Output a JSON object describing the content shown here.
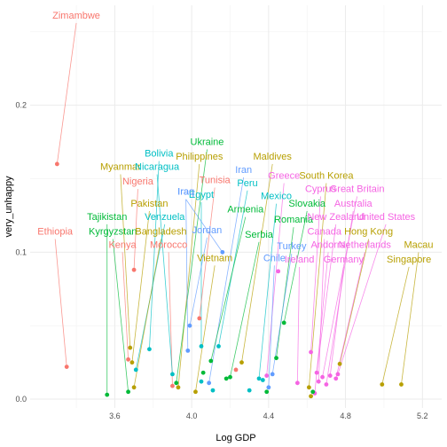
{
  "chart_data": {
    "type": "scatter",
    "xlabel": "Log GDP",
    "ylabel": "very_unhappy",
    "xlim": [
      3.16,
      5.3
    ],
    "ylim": [
      -0.006,
      0.268
    ],
    "x_ticks": [
      "3.6",
      "4.0",
      "4.4",
      "4.8",
      "5.2"
    ],
    "x_tick_values": [
      3.6,
      4.0,
      4.4,
      4.8,
      5.2
    ],
    "y_ticks": [
      "0.0",
      "0.1",
      "0.2"
    ],
    "y_tick_values": [
      0.0,
      0.1,
      0.2
    ],
    "grid": true,
    "colors": {
      "c1": "#F8766D",
      "c2": "#B79F00",
      "c3": "#00BA38",
      "c4": "#00BFC4",
      "c5": "#619CFF",
      "c6": "#F564E3"
    },
    "points": [
      {
        "label": "Zimambwe",
        "x": 3.3,
        "y": 0.16,
        "color": "c1",
        "lx": 3.4,
        "ly": 0.259
      },
      {
        "label": "Ethiopia",
        "x": 3.35,
        "y": 0.022,
        "color": "c1",
        "lx": 3.29,
        "ly": 0.112
      },
      {
        "label": "Myanmar",
        "x": 3.68,
        "y": 0.035,
        "color": "c2",
        "lx": 3.63,
        "ly": 0.156
      },
      {
        "label": "Nigeria",
        "x": 3.7,
        "y": 0.088,
        "color": "c1",
        "lx": 3.72,
        "ly": 0.146
      },
      {
        "label": "Pakistan",
        "x": 3.69,
        "y": 0.025,
        "color": "c2",
        "lx": 3.78,
        "ly": 0.131
      },
      {
        "label": "Tajikistan",
        "x": 3.56,
        "y": 0.003,
        "color": "c3",
        "lx": 3.56,
        "ly": 0.122
      },
      {
        "label": "Kyrgyzstan",
        "x": 3.67,
        "y": 0.005,
        "color": "c3",
        "lx": 3.59,
        "ly": 0.112
      },
      {
        "label": "Kenya",
        "x": 3.67,
        "y": 0.027,
        "color": "c1",
        "lx": 3.64,
        "ly": 0.103
      },
      {
        "label": "Venzuela",
        "x": 3.71,
        "y": 0.02,
        "color": "c4",
        "lx": 3.86,
        "ly": 0.122
      },
      {
        "label": "Bangladesh",
        "x": 3.7,
        "y": 0.008,
        "color": "c2",
        "lx": 3.84,
        "ly": 0.112
      },
      {
        "label": "Morocco",
        "x": 3.9,
        "y": 0.009,
        "color": "c1",
        "lx": 3.88,
        "ly": 0.103
      },
      {
        "label": "Bolivia",
        "x": 3.78,
        "y": 0.034,
        "color": "c4",
        "lx": 3.83,
        "ly": 0.165
      },
      {
        "label": "Nicaragua",
        "x": 3.9,
        "y": 0.017,
        "color": "c4",
        "lx": 3.82,
        "ly": 0.156
      },
      {
        "label": "Philippines",
        "x": 3.93,
        "y": 0.008,
        "color": "c2",
        "lx": 4.04,
        "ly": 0.163
      },
      {
        "label": "Ukraine",
        "x": 3.92,
        "y": 0.011,
        "color": "c3",
        "lx": 4.08,
        "ly": 0.173
      },
      {
        "label": "Iraq",
        "x": 3.98,
        "y": 0.033,
        "color": "c5",
        "lx": 3.97,
        "ly": 0.139
      },
      {
        "label": "Egypt",
        "x": 4.05,
        "y": 0.036,
        "color": "c4",
        "lx": 4.05,
        "ly": 0.137
      },
      {
        "label": "Tunisia",
        "x": 4.04,
        "y": 0.055,
        "color": "c1",
        "lx": 4.12,
        "ly": 0.147
      },
      {
        "label": "Jordan",
        "x": 3.99,
        "y": 0.05,
        "color": "c5",
        "lx": 4.08,
        "ly": 0.113
      },
      {
        "label": "Vietnam",
        "x": 4.02,
        "y": 0.005,
        "color": "c2",
        "lx": 4.12,
        "ly": 0.094
      },
      {
        "label": "Maldives",
        "x": 4.26,
        "y": 0.025,
        "color": "c2",
        "lx": 4.42,
        "ly": 0.163
      },
      {
        "label": "Iran",
        "x": 4.09,
        "y": 0.011,
        "color": "c5",
        "lx": 4.27,
        "ly": 0.154
      },
      {
        "label": "Peru",
        "x": 4.14,
        "y": 0.036,
        "color": "c4",
        "lx": 4.29,
        "ly": 0.145
      },
      {
        "label": "Armenia",
        "x": 4.1,
        "y": 0.026,
        "color": "c3",
        "lx": 4.28,
        "ly": 0.127
      },
      {
        "label": "Serbia",
        "x": 4.2,
        "y": 0.015,
        "color": "c3",
        "lx": 4.35,
        "ly": 0.11
      },
      {
        "label": "Greece",
        "x": 4.39,
        "y": 0.016,
        "color": "c6",
        "lx": 4.48,
        "ly": 0.15
      },
      {
        "label": "Mexico",
        "x": 4.35,
        "y": 0.014,
        "color": "c4",
        "lx": 4.44,
        "ly": 0.136
      },
      {
        "label": "Romania",
        "x": 4.44,
        "y": 0.028,
        "color": "c3",
        "lx": 4.53,
        "ly": 0.12
      },
      {
        "label": "Turkey",
        "x": 4.42,
        "y": 0.017,
        "color": "c5",
        "lx": 4.52,
        "ly": 0.102
      },
      {
        "label": "Chile",
        "x": 4.4,
        "y": 0.008,
        "color": "c5",
        "lx": 4.43,
        "ly": 0.094
      },
      {
        "label": "Iraq",
        "x": 4.16,
        "y": 0.1,
        "color": "c5",
        "lx": 3.97,
        "ly": 0.139
      },
      {
        "label": "Slovakia",
        "x": 4.48,
        "y": 0.052,
        "color": "c3",
        "lx": 4.6,
        "ly": 0.131
      },
      {
        "label": "South Korea",
        "x": 4.61,
        "y": 0.008,
        "color": "c2",
        "lx": 4.7,
        "ly": 0.15
      },
      {
        "label": "Cyprus",
        "x": 4.62,
        "y": 0.032,
        "color": "c6",
        "lx": 4.67,
        "ly": 0.141
      },
      {
        "label": "Great Britain",
        "x": 4.68,
        "y": 0.015,
        "color": "c6",
        "lx": 4.86,
        "ly": 0.141
      },
      {
        "label": "Australia",
        "x": 4.7,
        "y": 0.01,
        "color": "c6",
        "lx": 4.84,
        "ly": 0.131
      },
      {
        "label": "New Zealand",
        "x": 4.65,
        "y": 0.018,
        "color": "c6",
        "lx": 4.75,
        "ly": 0.122
      },
      {
        "label": "United States",
        "x": 4.76,
        "y": 0.017,
        "color": "c6",
        "lx": 5.01,
        "ly": 0.122
      },
      {
        "label": "Canada",
        "x": 4.66,
        "y": 0.012,
        "color": "c6",
        "lx": 4.69,
        "ly": 0.112
      },
      {
        "label": "Hong Kong",
        "x": 4.77,
        "y": 0.024,
        "color": "c2",
        "lx": 4.92,
        "ly": 0.112
      },
      {
        "label": "Andorra",
        "x": 4.64,
        "y": 0.004,
        "color": "c6",
        "lx": 4.71,
        "ly": 0.103
      },
      {
        "label": "Netherlands",
        "x": 4.75,
        "y": 0.014,
        "color": "c6",
        "lx": 4.9,
        "ly": 0.103
      },
      {
        "label": "Macau",
        "x": 5.09,
        "y": 0.01,
        "color": "c2",
        "lx": 5.18,
        "ly": 0.103
      },
      {
        "label": "Germany",
        "x": 4.72,
        "y": 0.016,
        "color": "c6",
        "lx": 4.79,
        "ly": 0.093
      },
      {
        "label": "Singapore",
        "x": 4.99,
        "y": 0.01,
        "color": "c2",
        "lx": 5.13,
        "ly": 0.093
      },
      {
        "label": "Ireland",
        "x": 4.55,
        "y": 0.011,
        "color": "c6",
        "lx": 4.56,
        "ly": 0.093
      },
      {
        "label": "",
        "x": 4.45,
        "y": 0.087,
        "color": "c6",
        "lx": 4.45,
        "ly": 0.087
      },
      {
        "label": "",
        "x": 4.63,
        "y": 0.005,
        "color": "c3",
        "lx": 4.63,
        "ly": 0.005
      },
      {
        "label": "",
        "x": 4.62,
        "y": 0.002,
        "color": "c2",
        "lx": 4.62,
        "ly": 0.002
      },
      {
        "label": "",
        "x": 4.23,
        "y": 0.02,
        "color": "c1",
        "lx": 4.23,
        "ly": 0.02
      },
      {
        "label": "",
        "x": 4.18,
        "y": 0.014,
        "color": "c3",
        "lx": 4.18,
        "ly": 0.014
      },
      {
        "label": "",
        "x": 4.3,
        "y": 0.006,
        "color": "c4",
        "lx": 4.3,
        "ly": 0.006
      },
      {
        "label": "",
        "x": 4.11,
        "y": 0.006,
        "color": "c4",
        "lx": 4.11,
        "ly": 0.006
      },
      {
        "label": "",
        "x": 4.39,
        "y": 0.005,
        "color": "c3",
        "lx": 4.39,
        "ly": 0.005
      },
      {
        "label": "",
        "x": 4.37,
        "y": 0.013,
        "color": "c4",
        "lx": 4.37,
        "ly": 0.013
      },
      {
        "label": "",
        "x": 4.06,
        "y": 0.018,
        "color": "c3",
        "lx": 4.06,
        "ly": 0.018
      },
      {
        "label": "",
        "x": 4.05,
        "y": 0.012,
        "color": "c4",
        "lx": 4.05,
        "ly": 0.012
      }
    ]
  }
}
